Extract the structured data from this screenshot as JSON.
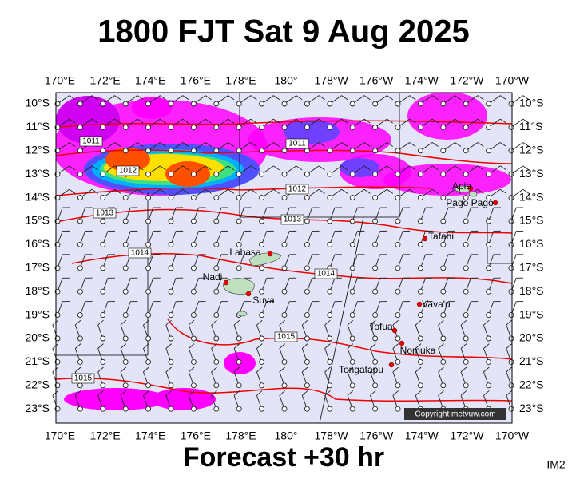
{
  "title": "1800 FJT Sat 9 Aug 2025",
  "footer": "Forecast +30 hr",
  "image_id": "IM2",
  "copyright": "Copyright metvuw.com",
  "longitude_labels": [
    "170°E",
    "172°E",
    "174°E",
    "176°E",
    "178°E",
    "180°",
    "178°W",
    "176°W",
    "174°W",
    "172°W",
    "170°W"
  ],
  "latitude_labels": [
    "10°S",
    "11°S",
    "12°S",
    "13°S",
    "14°S",
    "15°S",
    "16°S",
    "17°S",
    "18°S",
    "19°S",
    "20°S",
    "21°S",
    "22°S",
    "23°S"
  ],
  "isobar_labels": [
    "1011",
    "1012",
    "1013",
    "1014",
    "1011",
    "1012",
    "1013",
    "1014",
    "1015",
    "1015"
  ],
  "places": [
    "Apia",
    "Pago Pago",
    "Tafahi",
    "Labasa",
    "Nadi",
    "Suva",
    "Vava'u",
    "Tofua",
    "Nomuka",
    "Tongatapu"
  ]
}
